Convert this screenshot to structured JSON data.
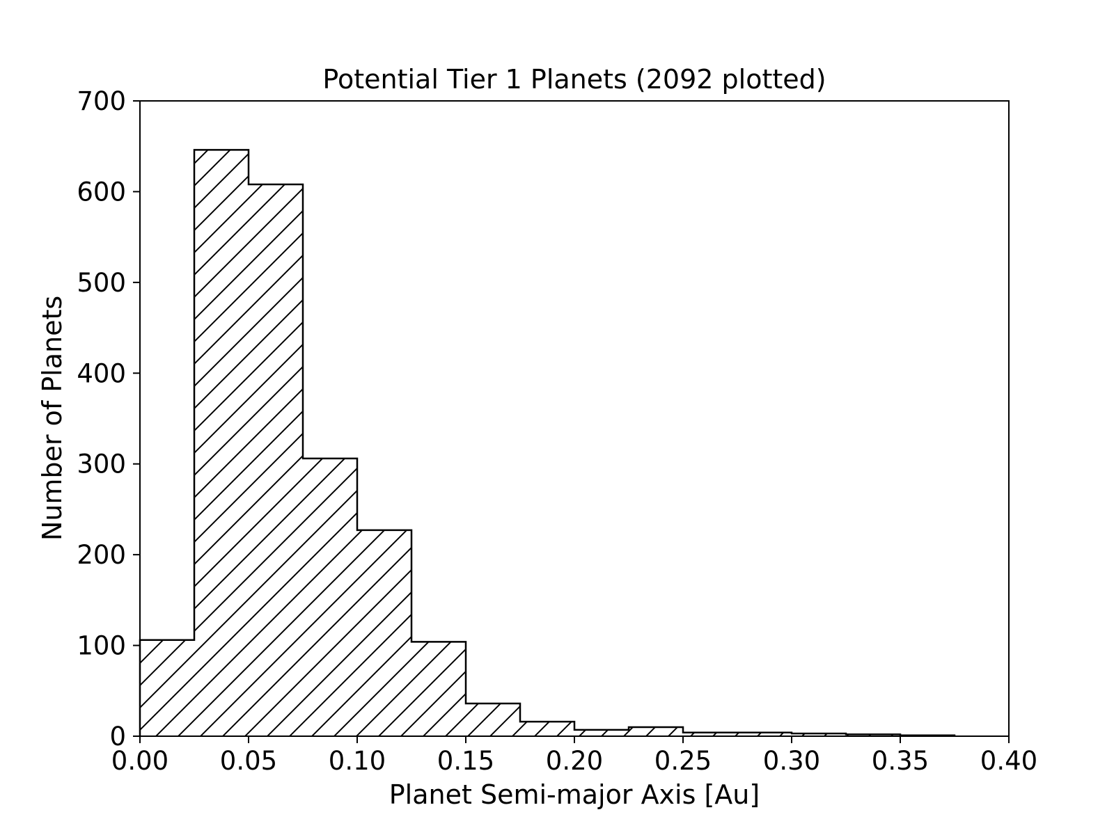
{
  "chart_data": {
    "type": "bar",
    "subtype": "histogram",
    "title": "Potential Tier 1 Planets (2092 plotted)",
    "xlabel": "Planet Semi-major Axis [Au]",
    "ylabel": "Number of Planets",
    "xlim": [
      0.0,
      0.4
    ],
    "ylim": [
      0,
      700
    ],
    "xticks": [
      "0.00",
      "0.05",
      "0.10",
      "0.15",
      "0.20",
      "0.25",
      "0.30",
      "0.35",
      "0.40"
    ],
    "yticks": [
      "0",
      "100",
      "200",
      "300",
      "400",
      "500",
      "600",
      "700"
    ],
    "bin_edges": [
      0.0,
      0.025,
      0.05,
      0.075,
      0.1,
      0.125,
      0.15,
      0.175,
      0.2,
      0.225,
      0.25,
      0.275,
      0.3,
      0.325,
      0.35,
      0.375
    ],
    "values": [
      106,
      646,
      608,
      306,
      227,
      104,
      36,
      16,
      7,
      10,
      4,
      4,
      3,
      2,
      1
    ],
    "hatch": "diagonal",
    "grid": false,
    "legend": "none"
  }
}
